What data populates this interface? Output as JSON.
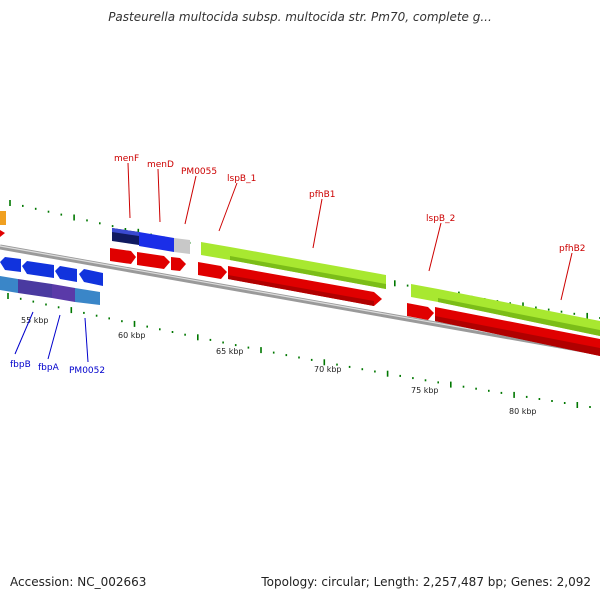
{
  "title": "Pasteurella multocida subsp. multocida str. Pm70, complete g...",
  "footer": {
    "accession": "Accession: NC_002663",
    "summary": "Topology: circular; Length: 2,257,487 bp; Genes: 2,092"
  },
  "colors": {
    "upper_strand_label": "#cc0000",
    "lower_strand_label": "#0000cc",
    "tick_marks": "#007700",
    "backbone": "#888888"
  },
  "scale": {
    "unit": "kbp",
    "labels": [
      "55 kbp",
      "60 kbp",
      "65 kbp",
      "70 kbp",
      "75 kbp",
      "80 kbp"
    ],
    "positions_kbp": [
      55,
      60,
      65,
      70,
      75,
      80
    ]
  },
  "genes": {
    "upper": [
      {
        "name": "menF",
        "start_kbp": 59.3,
        "end_kbp": 60.6
      },
      {
        "name": "menD",
        "start_kbp": 60.6,
        "end_kbp": 62.3
      },
      {
        "name": "PM0055",
        "start_kbp": 62.3,
        "end_kbp": 63.1
      },
      {
        "name": "lspB_1",
        "start_kbp": 63.7,
        "end_kbp": 65.3
      },
      {
        "name": "pfhB1",
        "start_kbp": 65.3,
        "end_kbp": 73.8
      },
      {
        "name": "lspB_2",
        "start_kbp": 74.5,
        "end_kbp": 76.0
      },
      {
        "name": "pfhB2",
        "start_kbp": 76.0,
        "end_kbp": 85.0
      }
    ],
    "lower": [
      {
        "name": "fbpB",
        "start_kbp": 53.0,
        "end_kbp": 55.3
      },
      {
        "name": "fbpA",
        "start_kbp": 55.3,
        "end_kbp": 56.9
      },
      {
        "name": "PM0052",
        "start_kbp": 56.9,
        "end_kbp": 58.1
      }
    ]
  }
}
